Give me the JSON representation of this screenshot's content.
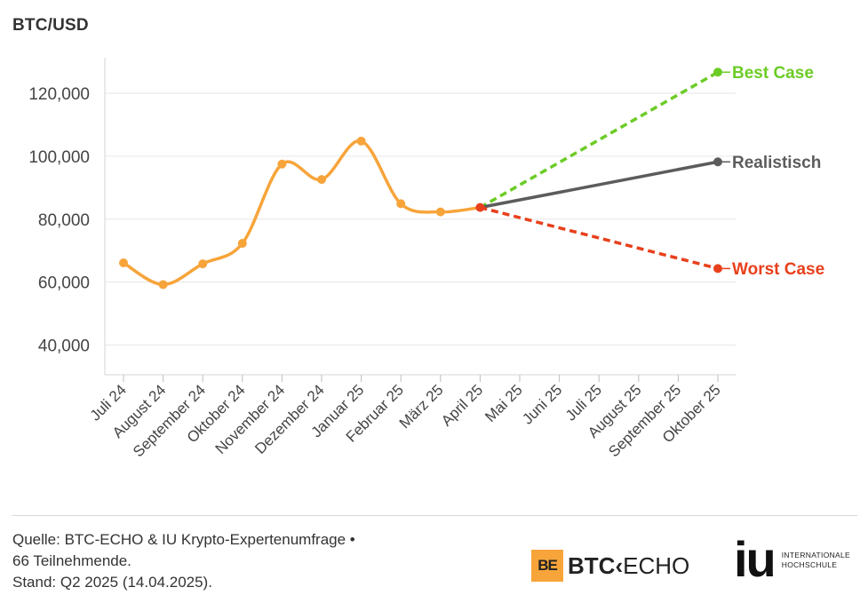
{
  "header": {
    "title": "BTC/USD"
  },
  "chart_data": {
    "type": "line",
    "title": "BTC/USD",
    "categories": [
      "Juli 24",
      "August 24",
      "September 24",
      "Oktober 24",
      "November 24",
      "Dezember 24",
      "Januar 25",
      "Februar 25",
      "März 25",
      "April 25",
      "Mai 25",
      "Juni 25",
      "Juli 25",
      "August 25",
      "September 25",
      "Oktober 25"
    ],
    "yticks": [
      40000,
      60000,
      80000,
      100000,
      120000
    ],
    "ytick_labels": [
      "40,000",
      "60,000",
      "80,000",
      "100,000",
      "120,000"
    ],
    "ylim": [
      30000,
      130000
    ],
    "grid": true,
    "historical": {
      "color": "#f7a43a",
      "values": [
        66100,
        59200,
        65800,
        72300,
        97500,
        92600,
        104800,
        84900,
        82300,
        83700
      ]
    },
    "scenarios": [
      {
        "name": "Best Case",
        "color": "#6ccc26",
        "dashed": true,
        "from": [
          9,
          83700
        ],
        "to": [
          15,
          126700
        ]
      },
      {
        "name": "Realistisch",
        "color": "#5c5c5c",
        "dashed": false,
        "from": [
          9,
          83700
        ],
        "to": [
          15,
          98200
        ]
      },
      {
        "name": "Worst Case",
        "color": "#e8401c",
        "dashed": true,
        "from": [
          9,
          83700
        ],
        "to": [
          15,
          64300
        ]
      }
    ],
    "current_point": {
      "index": 9,
      "value": 83700,
      "color": "#e8401c"
    }
  },
  "footer": {
    "source_line1": "Quelle: BTC-ECHO & IU Krypto-Expertenumfrage •",
    "source_line2": "66 Teilnehmende.",
    "source_line3": "Stand: Q2 2025 (14.04.2025).",
    "btc_logo_mark": "BE",
    "btc_logo_text_bold": "BTC",
    "btc_logo_arrow": "‹",
    "btc_logo_text": "ECHO",
    "iu_logo_mark": "iu",
    "iu_logo_line1": "INTERNATIONALE",
    "iu_logo_line2": "HOCHSCHULE"
  }
}
